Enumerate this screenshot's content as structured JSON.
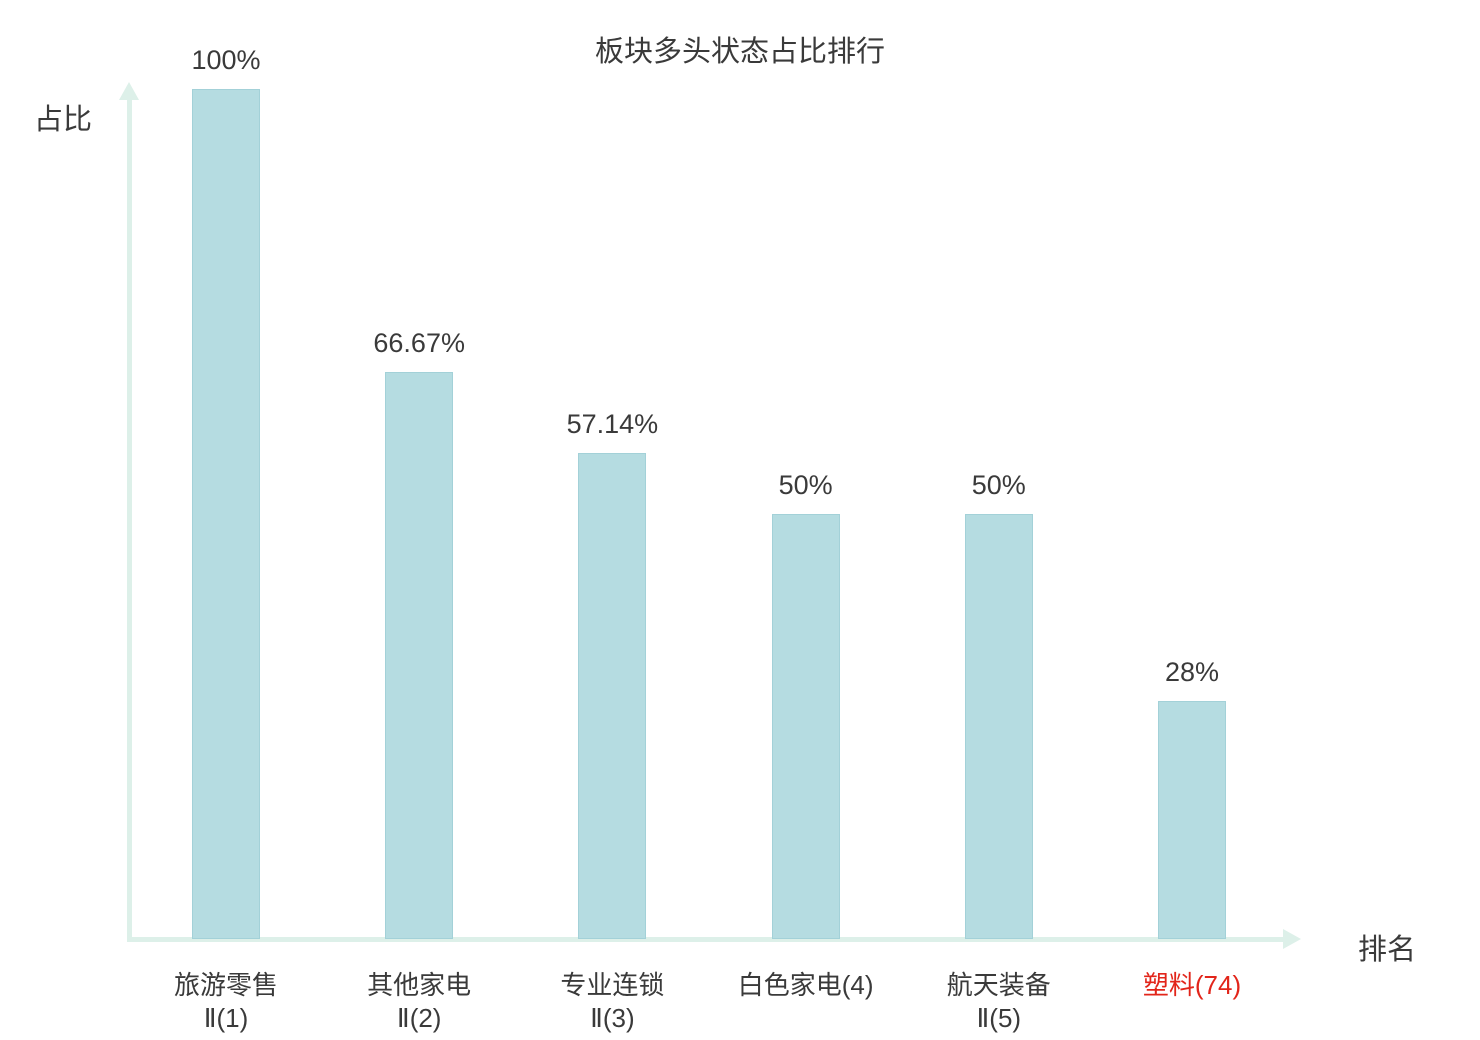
{
  "title": "板块多头状态占比排行",
  "axes": {
    "y_label": "占比",
    "x_label": "排名"
  },
  "colors": {
    "bar_fill": "#b5dce1",
    "bar_border": "#a3d1d8",
    "axis": "#ddf0e9",
    "text": "#3a3a3a",
    "highlight_text": "#e2251a"
  },
  "chart_data": {
    "type": "bar",
    "title": "板块多头状态占比排行",
    "xlabel": "排名",
    "ylabel": "占比",
    "ylim": [
      0,
      100
    ],
    "grid": false,
    "legend": "none",
    "categories": [
      "旅游零售Ⅱ(1)",
      "其他家电Ⅱ(2)",
      "专业连锁Ⅱ(3)",
      "白色家电(4)",
      "航天装备Ⅱ(5)",
      "塑料(74)"
    ],
    "category_label_lines": [
      [
        "旅游零售",
        "Ⅱ(1)"
      ],
      [
        "其他家电",
        "Ⅱ(2)"
      ],
      [
        "专业连锁",
        "Ⅱ(3)"
      ],
      [
        "白色家电(4)"
      ],
      [
        "航天装备",
        "Ⅱ(5)"
      ],
      [
        "塑料(74)"
      ]
    ],
    "values": [
      100,
      66.67,
      57.14,
      50,
      50,
      28
    ],
    "value_labels": [
      "100%",
      "66.67%",
      "57.14%",
      "50%",
      "50%",
      "28%"
    ],
    "highlight_index": 5
  }
}
